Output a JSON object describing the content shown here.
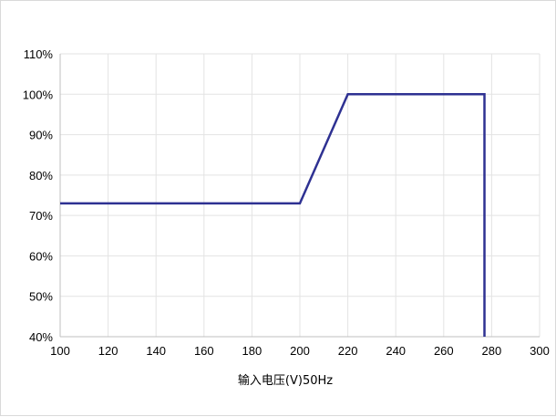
{
  "chart_data": {
    "type": "line",
    "title": "",
    "xlabel": "输入电压(V)50Hz",
    "ylabel": "",
    "xlim": [
      100,
      300
    ],
    "ylim": [
      40,
      110
    ],
    "x_ticks": [
      100,
      120,
      140,
      160,
      180,
      200,
      220,
      240,
      260,
      280,
      300
    ],
    "y_ticks": [
      40,
      50,
      60,
      70,
      80,
      90,
      100,
      110
    ],
    "y_tick_format": "percent",
    "grid": true,
    "legend": "none",
    "series": [
      {
        "color": "#2e3192",
        "points": [
          {
            "x": 100,
            "y": 73
          },
          {
            "x": 200,
            "y": 73
          },
          {
            "x": 220,
            "y": 100
          },
          {
            "x": 277,
            "y": 100
          },
          {
            "x": 277,
            "y": 40
          }
        ]
      }
    ]
  }
}
